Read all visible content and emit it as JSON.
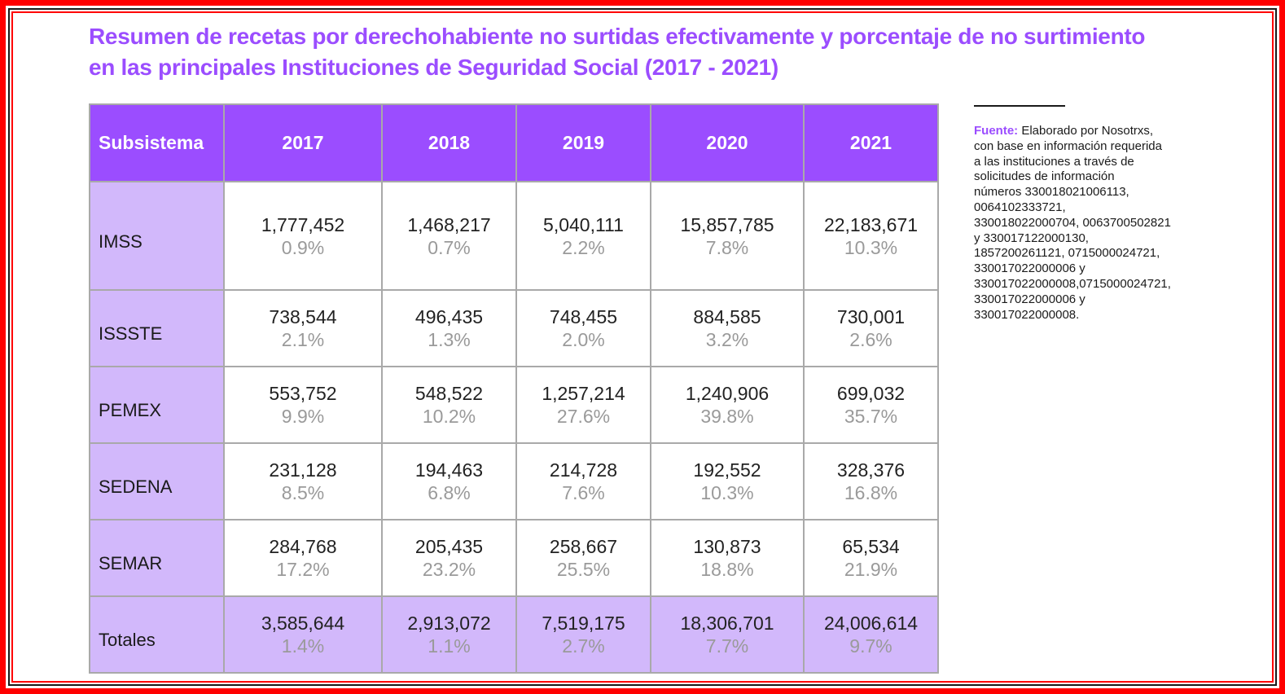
{
  "title": {
    "line1": "Resumen de recetas por derechohabiente no surtidas efectivamente y porcentaje de no surtimiento",
    "line2": "en las principales Instituciones de Seguridad Social (2017 - 2021)"
  },
  "table": {
    "headers": [
      "Subsistema",
      "2017",
      "2018",
      "2019",
      "2020",
      "2021"
    ],
    "rows": [
      {
        "name": "IMSS",
        "cells": [
          {
            "value": "1,777,452",
            "pct": "0.9%"
          },
          {
            "value": "1,468,217",
            "pct": "0.7%"
          },
          {
            "value": "5,040,111",
            "pct": "2.2%"
          },
          {
            "value": "15,857,785",
            "pct": "7.8%"
          },
          {
            "value": "22,183,671",
            "pct": "10.3%"
          }
        ]
      },
      {
        "name": "ISSSTE",
        "cells": [
          {
            "value": "738,544",
            "pct": "2.1%"
          },
          {
            "value": "496,435",
            "pct": "1.3%"
          },
          {
            "value": "748,455",
            "pct": "2.0%"
          },
          {
            "value": "884,585",
            "pct": "3.2%"
          },
          {
            "value": "730,001",
            "pct": "2.6%"
          }
        ]
      },
      {
        "name": "PEMEX",
        "cells": [
          {
            "value": "553,752",
            "pct": "9.9%"
          },
          {
            "value": "548,522",
            "pct": "10.2%"
          },
          {
            "value": "1,257,214",
            "pct": "27.6%"
          },
          {
            "value": "1,240,906",
            "pct": "39.8%"
          },
          {
            "value": "699,032",
            "pct": "35.7%"
          }
        ]
      },
      {
        "name": "SEDENA",
        "cells": [
          {
            "value": "231,128",
            "pct": "8.5%"
          },
          {
            "value": "194,463",
            "pct": "6.8%"
          },
          {
            "value": "214,728",
            "pct": "7.6%"
          },
          {
            "value": "192,552",
            "pct": "10.3%"
          },
          {
            "value": "328,376",
            "pct": "16.8%"
          }
        ]
      },
      {
        "name": "SEMAR",
        "cells": [
          {
            "value": "284,768",
            "pct": "17.2%"
          },
          {
            "value": "205,435",
            "pct": "23.2%"
          },
          {
            "value": "258,667",
            "pct": "25.5%"
          },
          {
            "value": "130,873",
            "pct": "18.8%"
          },
          {
            "value": "65,534",
            "pct": "21.9%"
          }
        ]
      },
      {
        "name": "Totales",
        "cells": [
          {
            "value": "3,585,644",
            "pct": "1.4%"
          },
          {
            "value": "2,913,072",
            "pct": "1.1%"
          },
          {
            "value": "7,519,175",
            "pct": "2.7%"
          },
          {
            "value": "18,306,701",
            "pct": "7.7%"
          },
          {
            "value": "24,006,614",
            "pct": "9.7%"
          }
        ]
      }
    ]
  },
  "note": {
    "label": "Fuente:",
    "lines": [
      "Elaborado por Nosotrxs,",
      "con base en información requerida",
      "a las instituciones a través de",
      "solicitudes de información",
      "números 330018021006113,",
      "0064102333721,",
      "330018022000704, 0063700502821",
      "y 330017122000130,",
      "1857200261121, 0715000024721,",
      "330017022000006 y",
      "330017022000008,0715000024721,",
      "330017022000006 y",
      "330017022000008."
    ]
  },
  "colors": {
    "accent": "#9b4dff",
    "header_bg": "#9b4dff",
    "row_label_bg": "#d2b8fb",
    "frame": "#ff0000",
    "pct_text": "#9a9a9a"
  }
}
